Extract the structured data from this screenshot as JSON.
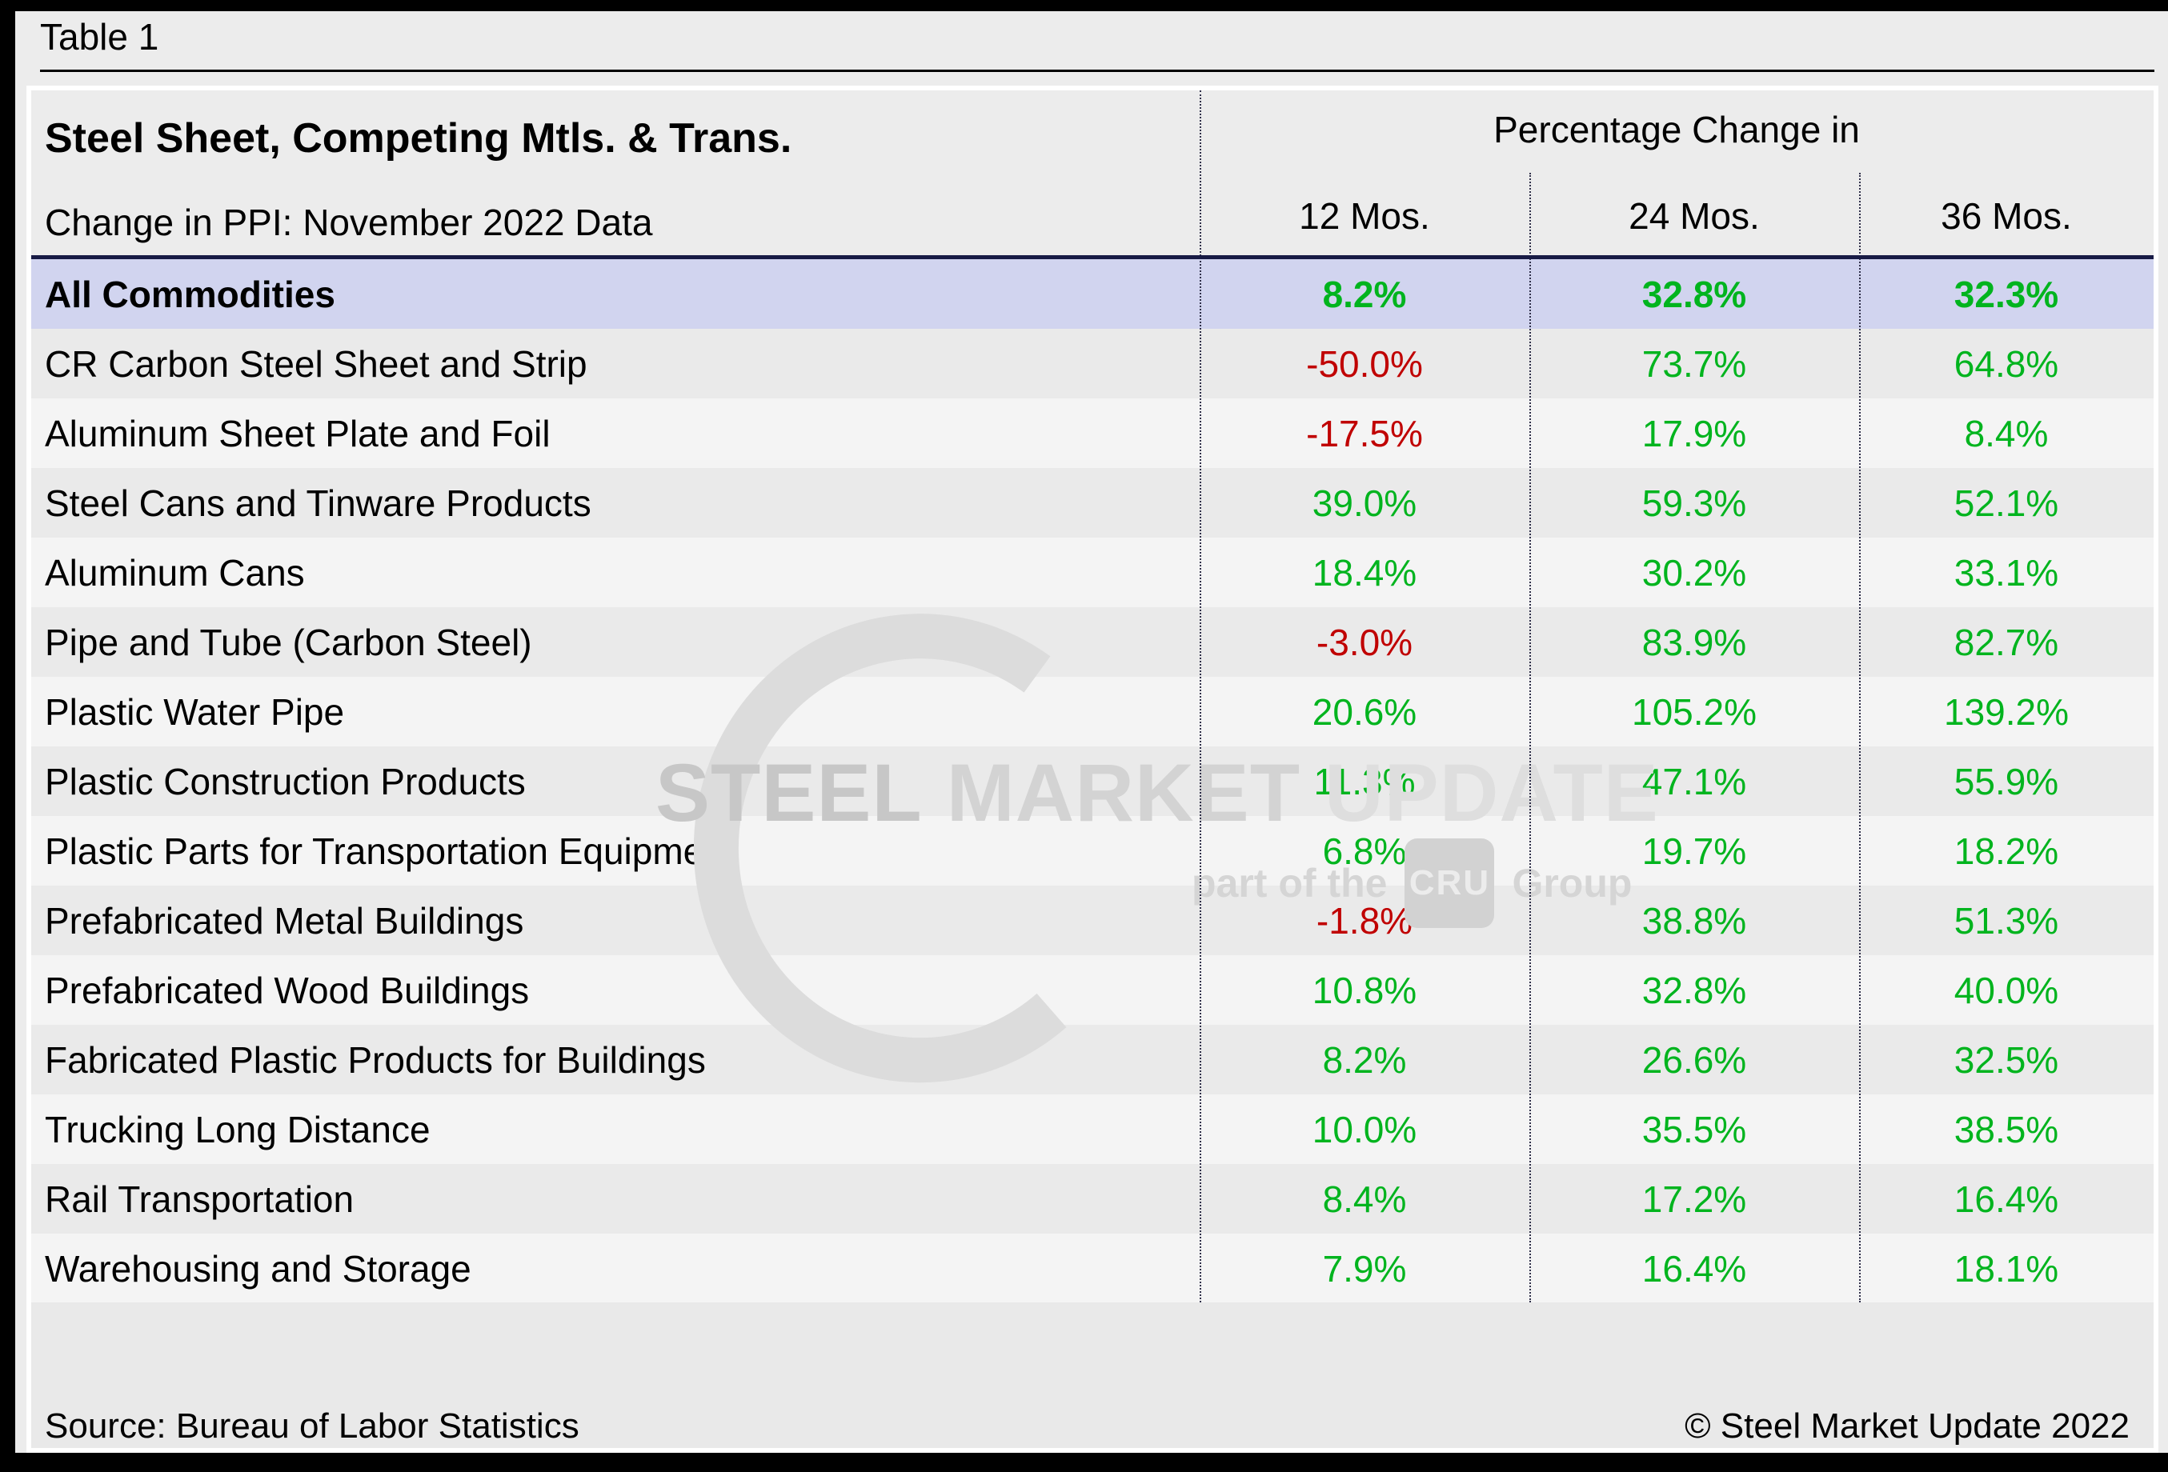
{
  "page": {
    "table_label": "Table 1",
    "source": "Source: Bureau of Labor Statistics",
    "copyright": "© Steel Market Update 2022"
  },
  "watermark": {
    "main_words": [
      "STEEL",
      "MARKET",
      "UPDATE"
    ],
    "sub_prefix": "part of the",
    "sub_box": "CRU",
    "sub_suffix": "Group"
  },
  "colors": {
    "navy_border": "#181b45",
    "positive_green": "#00b41e",
    "negative_red": "#c00000",
    "highlight_row_lavender": "#d1d4ef"
  },
  "chart_data": {
    "type": "table",
    "title": "Steel Sheet, Competing Mtls. & Trans.",
    "subtitle": "Change in PPI: November 2022 Data",
    "column_group_header": "Percentage Change in",
    "columns": [
      "12 Mos.",
      "24 Mos.",
      "36 Mos."
    ],
    "rows": [
      {
        "label": "All Commodities",
        "values": [
          "8.2%",
          "32.8%",
          "32.3%"
        ],
        "emphasis": true
      },
      {
        "label": "CR Carbon Steel Sheet and Strip",
        "values": [
          "-50.0%",
          "73.7%",
          "64.8%"
        ]
      },
      {
        "label": "Aluminum Sheet Plate and Foil",
        "values": [
          "-17.5%",
          "17.9%",
          "8.4%"
        ]
      },
      {
        "label": "Steel Cans and Tinware Products",
        "values": [
          "39.0%",
          "59.3%",
          "52.1%"
        ]
      },
      {
        "label": "Aluminum Cans",
        "values": [
          "18.4%",
          "30.2%",
          "33.1%"
        ]
      },
      {
        "label": "Pipe and Tube (Carbon Steel)",
        "values": [
          "-3.0%",
          "83.9%",
          "82.7%"
        ]
      },
      {
        "label": "Plastic Water Pipe",
        "values": [
          "20.6%",
          "105.2%",
          "139.2%"
        ]
      },
      {
        "label": "Plastic Construction Products",
        "values": [
          "11.3%",
          "47.1%",
          "55.9%"
        ]
      },
      {
        "label": "Plastic Parts for Transportation Equipment",
        "values": [
          "6.8%",
          "19.7%",
          "18.2%"
        ]
      },
      {
        "label": "Prefabricated Metal Buildings",
        "values": [
          "-1.8%",
          "38.8%",
          "51.3%"
        ]
      },
      {
        "label": "Prefabricated Wood Buildings",
        "values": [
          "10.8%",
          "32.8%",
          "40.0%"
        ]
      },
      {
        "label": "Fabricated Plastic Products for Buildings",
        "values": [
          "8.2%",
          "26.6%",
          "32.5%"
        ]
      },
      {
        "label": "Trucking Long Distance",
        "values": [
          "10.0%",
          "35.5%",
          "38.5%"
        ]
      },
      {
        "label": "Rail Transportation",
        "values": [
          "8.4%",
          "17.2%",
          "16.4%"
        ]
      },
      {
        "label": "Warehousing and Storage",
        "values": [
          "7.9%",
          "16.4%",
          "18.1%"
        ]
      }
    ],
    "value_color_positive": "#00b41e",
    "value_color_negative": "#c00000",
    "legend_position": "none",
    "grid": "dotted-column-dividers"
  }
}
